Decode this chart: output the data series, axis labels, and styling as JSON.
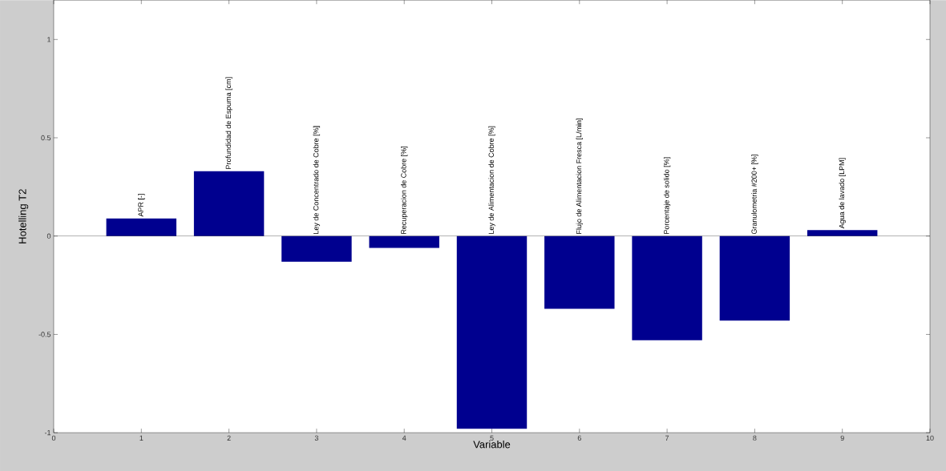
{
  "chart_data": {
    "type": "bar",
    "xlabel": "Variable",
    "ylabel": "Hotelling T2",
    "x": [
      1,
      2,
      3,
      4,
      5,
      6,
      7,
      8,
      9
    ],
    "values": [
      0.09,
      0.33,
      -0.13,
      -0.06,
      -0.98,
      -0.37,
      -0.53,
      -0.43,
      0.03
    ],
    "color": "#00008f",
    "xlim": [
      0,
      10
    ],
    "xticks": [
      0,
      1,
      2,
      3,
      4,
      5,
      6,
      7,
      8,
      9,
      10
    ],
    "ylim": [
      -1,
      1.2
    ],
    "yticks": [
      -1,
      -0.5,
      0,
      0.5,
      1
    ],
    "annotations": [
      {
        "text": "APR [-]",
        "x": 1,
        "y": 0.09
      },
      {
        "text": "Profundidad de Espuma [cm]",
        "x": 2,
        "y": 0.33
      },
      {
        "text": "Ley de Concentrado de Cobre [%]",
        "x": 3,
        "y": 0
      },
      {
        "text": "Recuperacion de Cobre [%]",
        "x": 4,
        "y": 0
      },
      {
        "text": "Ley de Alimentacion de Cobre [%]",
        "x": 5,
        "y": 0
      },
      {
        "text": "Flujo de Alimentacion Fresca [L/min]",
        "x": 6,
        "y": 0
      },
      {
        "text": "Porcentaje de solido [%]",
        "x": 7,
        "y": 0
      },
      {
        "text": "Granulometria #200+ [%]",
        "x": 8,
        "y": 0
      },
      {
        "text": "Agua de lavado [LPM]",
        "x": 9,
        "y": 0.03
      }
    ]
  }
}
